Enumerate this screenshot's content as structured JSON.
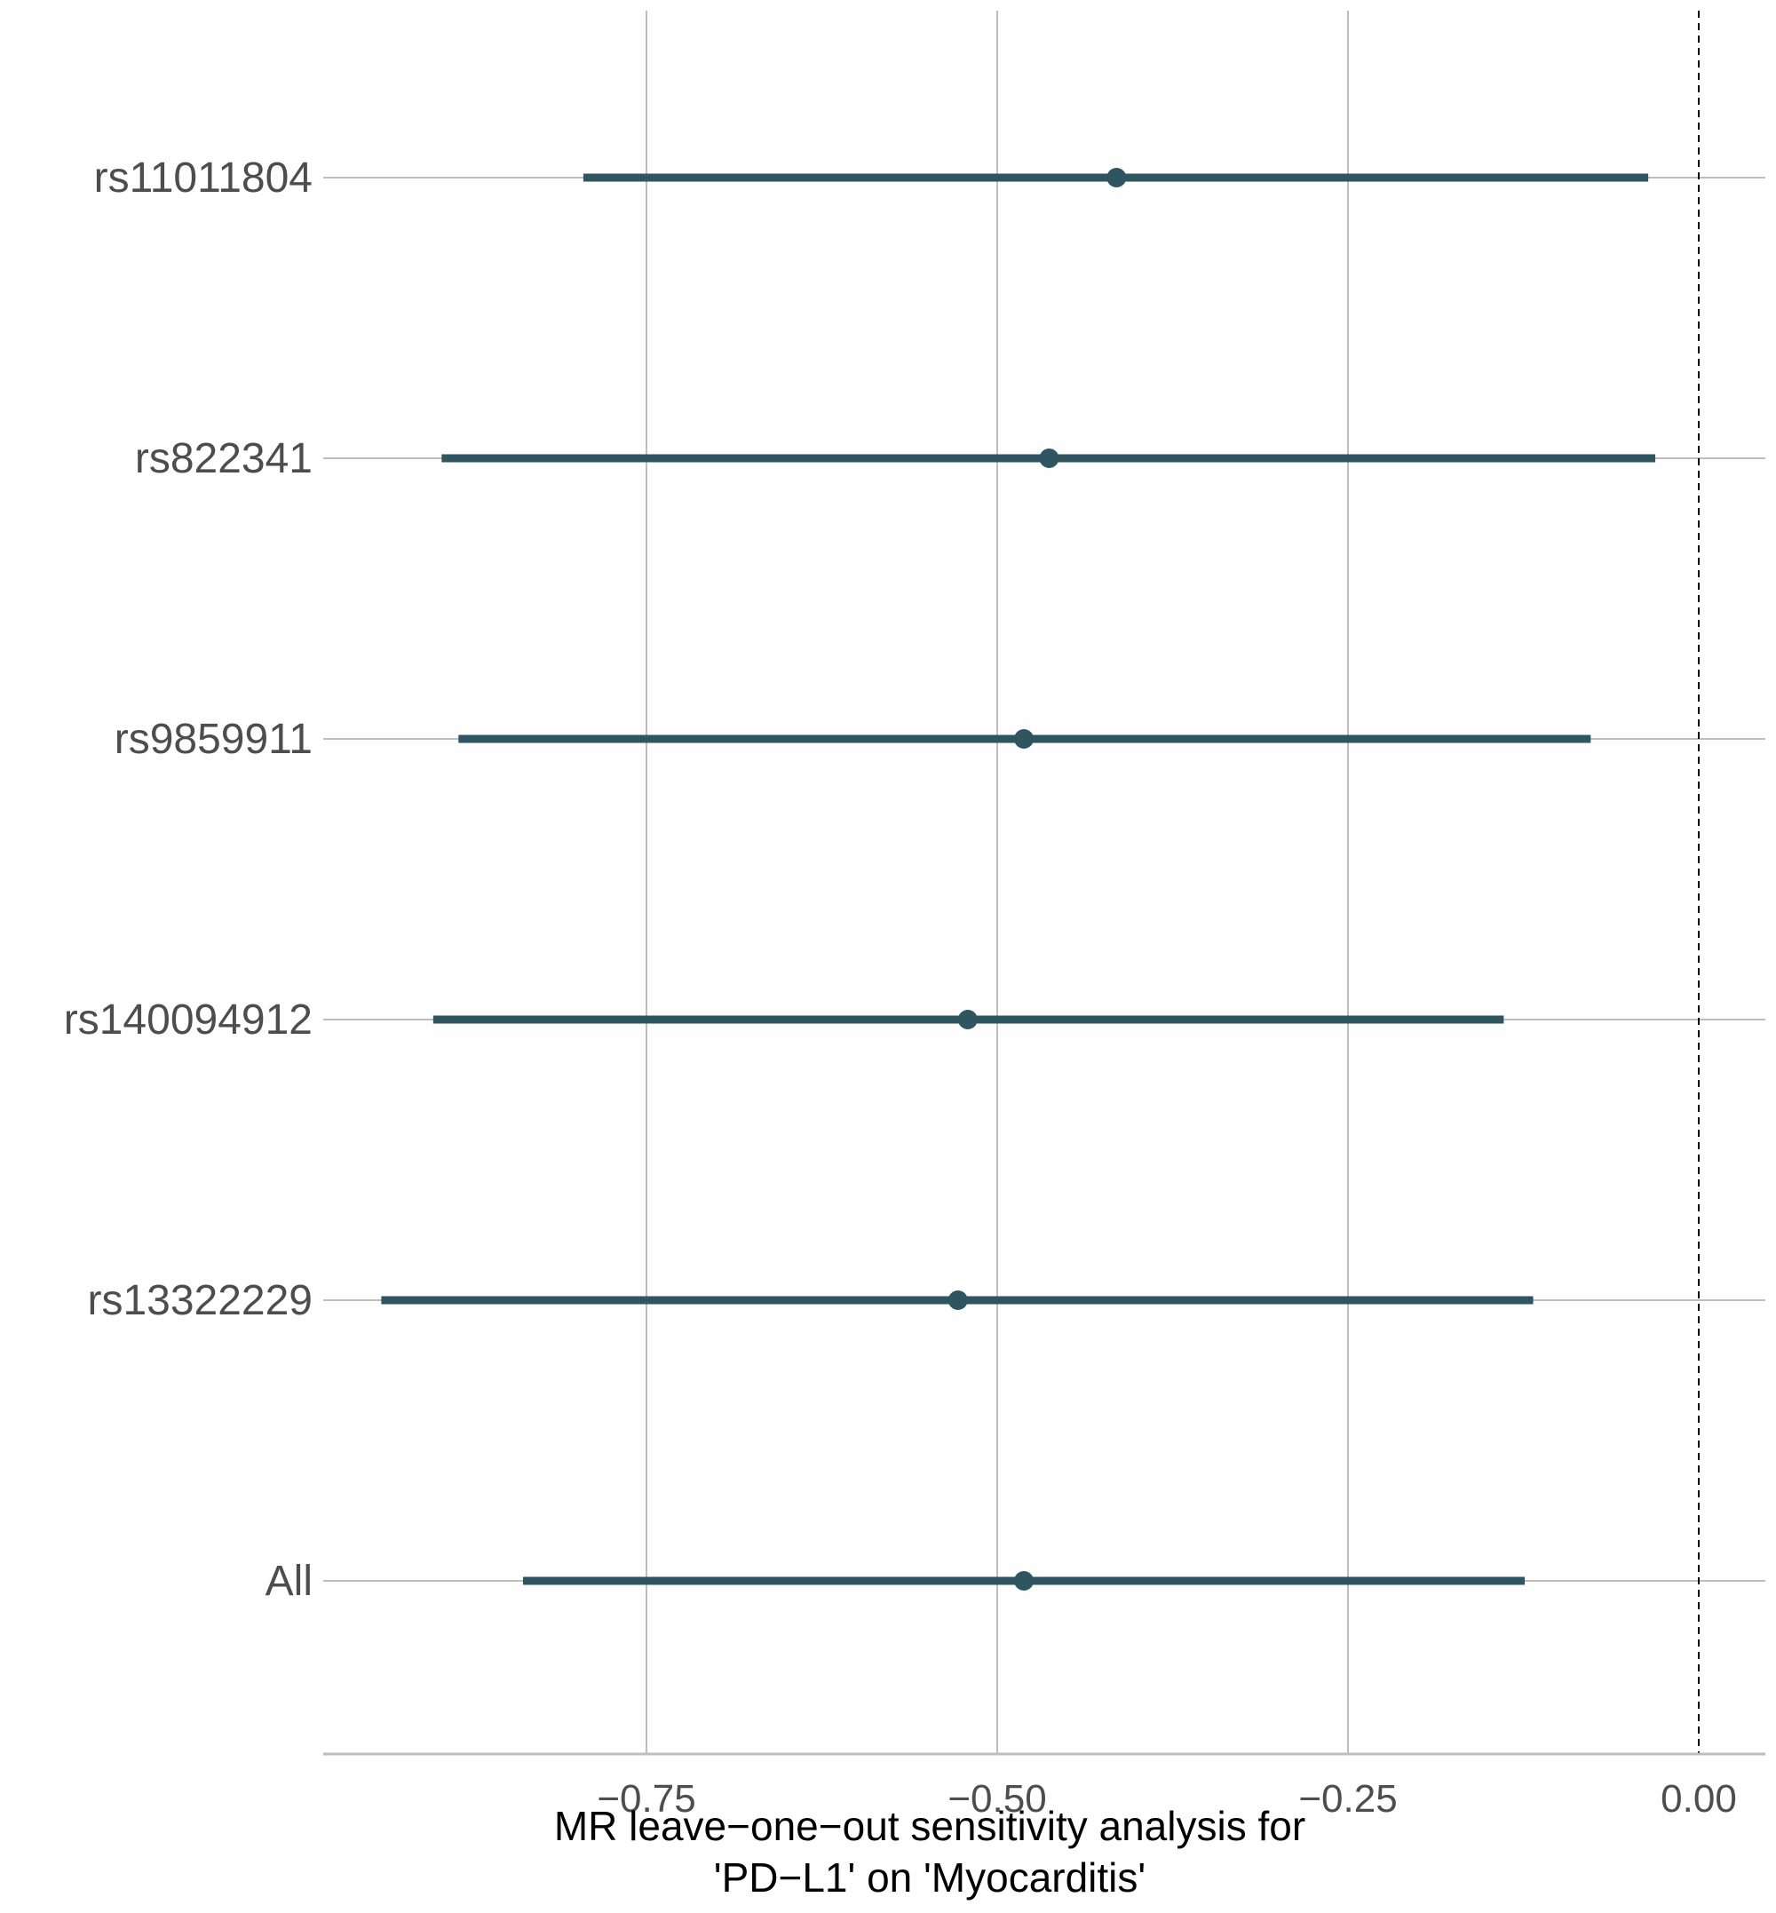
{
  "chart_data": {
    "type": "forest",
    "xlabel_line1": "MR leave−one−out sensitivity analysis for",
    "xlabel_line2": "'PD−L1' on 'Myocarditis'",
    "ylabel": "",
    "xlim": [
      -1.0,
      0.0
    ],
    "x_ticks": [
      -0.75,
      -0.5,
      -0.25,
      0.0
    ],
    "x_tick_labels": [
      "−0.75",
      "−0.50",
      "−0.25",
      "0.00"
    ],
    "reference_line": 0.0,
    "grid": true,
    "colors": {
      "points": "#2f5560",
      "grid": "#bdbdbd",
      "reference": "#000000"
    },
    "rows": [
      {
        "label": "rs11011804",
        "estimate": -0.415,
        "lower": -0.795,
        "upper": -0.036
      },
      {
        "label": "rs822341",
        "estimate": -0.463,
        "lower": -0.896,
        "upper": -0.031
      },
      {
        "label": "rs9859911",
        "estimate": -0.481,
        "lower": -0.884,
        "upper": -0.077
      },
      {
        "label": "rs140094912",
        "estimate": -0.521,
        "lower": -0.902,
        "upper": -0.139
      },
      {
        "label": "rs13322229",
        "estimate": -0.528,
        "lower": -0.939,
        "upper": -0.118
      },
      {
        "label": "All",
        "estimate": -0.481,
        "lower": -0.838,
        "upper": -0.124
      }
    ]
  }
}
